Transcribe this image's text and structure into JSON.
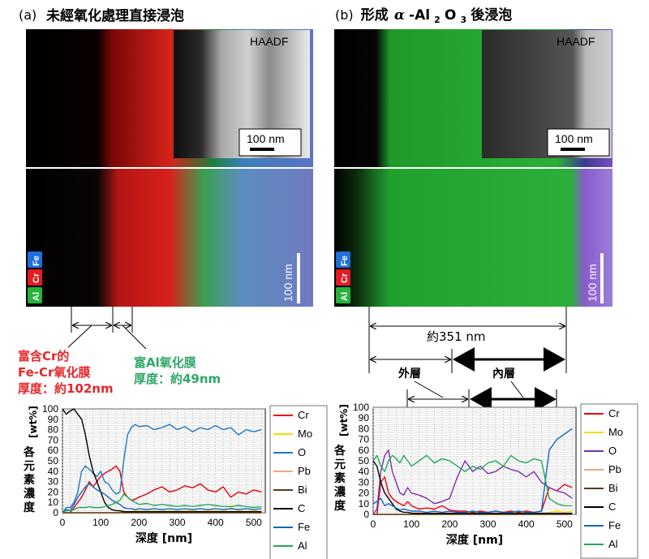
{
  "panels": [
    {
      "id": "a",
      "title_prefix": "(a)",
      "title": "未經氧化處理直接浸泡",
      "haadf_label": "HAADF",
      "scalebar_label": "100 nm",
      "map_scalebar_label": "100 nm",
      "element_badges": [
        "Fe",
        "Cr",
        "Al"
      ],
      "annotations": {
        "layer1_lines": [
          "富含Cr的",
          "Fe-Cr氧化膜",
          "厚度：約102nm"
        ],
        "layer2_lines": [
          "富Al氧化膜",
          "厚度：約49nm"
        ]
      },
      "colors": {
        "layer1": "#e8262a",
        "layer2": "#2ea86a"
      }
    },
    {
      "id": "b",
      "title_prefix": "(b)",
      "title_main": "形成",
      "title_alpha": "α",
      "title_compound": [
        "-Al",
        "2",
        "O",
        "3"
      ],
      "title_suffix": "後浸泡",
      "haadf_label": "HAADF",
      "scalebar_label": "100 nm",
      "map_scalebar_label": "100 nm",
      "element_badges": [
        "Fe",
        "Cr",
        "Al"
      ],
      "annotations": {
        "total": "約351 nm",
        "outer": "外層",
        "inner": "內層"
      }
    }
  ],
  "colors": {
    "Cr": "#e8000b",
    "Mo": "#ffd700",
    "O": "#7b2fb0",
    "O_a": "#1f77c4",
    "Pb": "#f4a582",
    "Bi": "#5c3b1e",
    "C": "#000000",
    "Fe": "#1565c0",
    "Al": "#22a85a",
    "badge_fe": "#1e6fd9",
    "badge_cr": "#e31b23",
    "badge_al": "#28b33a"
  },
  "chart_data": [
    {
      "type": "line",
      "panel": "a",
      "ylabel": "[wt%]",
      "ylabel_chars": [
        "各",
        "元",
        "素",
        "濃",
        "度"
      ],
      "xlabel": "深度 [nm]",
      "xlim": [
        0,
        530
      ],
      "ylim": [
        0,
        100
      ],
      "xticks": [
        0,
        100,
        200,
        300,
        400,
        500
      ],
      "yticks": [
        0,
        10,
        20,
        30,
        40,
        50,
        60,
        70,
        80,
        90,
        100
      ],
      "legend": [
        "Cr",
        "Mo",
        "O",
        "Pb",
        "Bi",
        "C",
        "Fe",
        "Al"
      ],
      "x": [
        0,
        10,
        20,
        30,
        40,
        50,
        60,
        70,
        80,
        90,
        100,
        110,
        120,
        130,
        140,
        150,
        160,
        170,
        180,
        190,
        200,
        220,
        240,
        260,
        280,
        300,
        320,
        340,
        360,
        380,
        400,
        420,
        440,
        460,
        480,
        500,
        520
      ],
      "series": [
        {
          "name": "Cr",
          "values": [
            0,
            0,
            0,
            5,
            10,
            15,
            22,
            30,
            25,
            30,
            35,
            38,
            40,
            42,
            45,
            40,
            20,
            15,
            12,
            13,
            15,
            18,
            22,
            25,
            20,
            22,
            26,
            24,
            28,
            22,
            20,
            25,
            15,
            20,
            18,
            22,
            20
          ]
        },
        {
          "name": "Mo",
          "values": [
            0,
            0,
            0,
            0,
            0,
            0,
            0,
            0,
            0,
            0,
            0,
            0,
            0,
            0,
            0,
            1,
            1,
            1,
            1,
            2,
            2,
            1,
            2,
            1,
            2,
            1,
            2,
            2,
            1,
            2,
            2,
            1,
            5,
            2,
            1,
            2,
            1
          ]
        },
        {
          "name": "O",
          "values": [
            0,
            5,
            5,
            10,
            20,
            40,
            45,
            42,
            38,
            35,
            40,
            30,
            28,
            22,
            18,
            20,
            50,
            75,
            82,
            85,
            83,
            84,
            80,
            82,
            85,
            80,
            83,
            78,
            82,
            80,
            84,
            80,
            82,
            75,
            80,
            78,
            80
          ]
        },
        {
          "name": "Pb",
          "values": [
            0,
            0,
            0,
            0,
            0,
            0,
            0,
            0,
            0,
            0,
            0,
            0,
            0,
            0,
            0,
            0,
            0,
            0,
            0,
            0,
            0,
            0,
            0,
            0,
            0,
            0,
            0,
            0,
            0,
            0,
            0,
            0,
            0,
            0,
            0,
            0,
            0
          ]
        },
        {
          "name": "Bi",
          "values": [
            0,
            0,
            0,
            0,
            0,
            0,
            0,
            0,
            0,
            0,
            0,
            0,
            0,
            0,
            0,
            0,
            0,
            0,
            0,
            0,
            0,
            0,
            0,
            0,
            0,
            0,
            0,
            0,
            0,
            0,
            0,
            0,
            0,
            0,
            0,
            0,
            0
          ]
        },
        {
          "name": "C",
          "values": [
            100,
            95,
            98,
            100,
            95,
            90,
            75,
            55,
            40,
            30,
            20,
            10,
            5,
            3,
            2,
            2,
            1,
            1,
            1,
            1,
            1,
            1,
            1,
            1,
            1,
            1,
            1,
            1,
            1,
            1,
            1,
            1,
            1,
            1,
            1,
            1,
            1
          ]
        },
        {
          "name": "Fe",
          "values": [
            0,
            3,
            2,
            8,
            15,
            20,
            25,
            28,
            25,
            22,
            20,
            18,
            15,
            12,
            10,
            8,
            5,
            4,
            4,
            3,
            4,
            3,
            4,
            3,
            4,
            3,
            4,
            3,
            4,
            3,
            4,
            3,
            4,
            3,
            4,
            3,
            4
          ]
        },
        {
          "name": "Al",
          "values": [
            0,
            2,
            2,
            3,
            5,
            5,
            5,
            6,
            5,
            5,
            5,
            6,
            7,
            8,
            10,
            12,
            18,
            15,
            12,
            10,
            8,
            9,
            7,
            8,
            7,
            6,
            7,
            6,
            7,
            8,
            7,
            6,
            6,
            7,
            6,
            5,
            6
          ]
        }
      ]
    },
    {
      "type": "line",
      "panel": "b",
      "ylabel": "[wt%]",
      "ylabel_chars": [
        "各",
        "元",
        "素",
        "濃",
        "度"
      ],
      "xlabel": "深度 [nm]",
      "xlim": [
        0,
        530
      ],
      "ylim": [
        0,
        100
      ],
      "xticks": [
        0,
        100,
        200,
        300,
        400,
        500
      ],
      "yticks": [
        0,
        10,
        20,
        30,
        40,
        50,
        60,
        70,
        80,
        90,
        100
      ],
      "legend": [
        "Cr",
        "Mo",
        "O",
        "Pb",
        "Bi",
        "C",
        "Fe",
        "Al"
      ],
      "x": [
        0,
        10,
        20,
        30,
        40,
        50,
        60,
        70,
        80,
        90,
        100,
        120,
        140,
        160,
        180,
        200,
        220,
        240,
        260,
        280,
        300,
        320,
        340,
        360,
        380,
        400,
        420,
        440,
        460,
        480,
        500,
        520
      ],
      "series": [
        {
          "name": "Cr",
          "values": [
            0,
            0,
            30,
            35,
            20,
            15,
            12,
            10,
            8,
            12,
            8,
            5,
            6,
            5,
            8,
            4,
            3,
            3,
            2,
            3,
            2,
            3,
            2,
            3,
            2,
            3,
            2,
            3,
            25,
            22,
            28,
            25
          ]
        },
        {
          "name": "Mo",
          "values": [
            0,
            0,
            0,
            0,
            0,
            0,
            0,
            0,
            0,
            0,
            0,
            0,
            0,
            0,
            0,
            0,
            0,
            0,
            0,
            0,
            0,
            0,
            0,
            0,
            0,
            0,
            0,
            0,
            2,
            3,
            2,
            3
          ]
        },
        {
          "name": "O",
          "values": [
            0,
            5,
            40,
            55,
            60,
            40,
            30,
            20,
            18,
            25,
            20,
            18,
            15,
            10,
            12,
            15,
            35,
            50,
            40,
            45,
            38,
            40,
            45,
            42,
            40,
            35,
            40,
            30,
            25,
            22,
            20,
            15
          ]
        },
        {
          "name": "Pb",
          "values": [
            0,
            0,
            0,
            0,
            0,
            0,
            0,
            0,
            0,
            0,
            0,
            0,
            0,
            0,
            0,
            0,
            0,
            0,
            0,
            0,
            0,
            0,
            0,
            0,
            0,
            0,
            0,
            0,
            0,
            0,
            0,
            0
          ]
        },
        {
          "name": "Bi",
          "values": [
            0,
            0,
            0,
            0,
            0,
            0,
            0,
            0,
            0,
            0,
            0,
            0,
            0,
            0,
            0,
            0,
            0,
            0,
            0,
            0,
            0,
            0,
            0,
            0,
            0,
            0,
            0,
            0,
            0,
            0,
            0,
            0
          ]
        },
        {
          "name": "C",
          "values": [
            50,
            45,
            30,
            20,
            15,
            10,
            5,
            3,
            2,
            2,
            1,
            1,
            1,
            1,
            1,
            1,
            1,
            1,
            1,
            1,
            1,
            1,
            1,
            1,
            1,
            1,
            1,
            1,
            1,
            1,
            1,
            1
          ]
        },
        {
          "name": "Fe",
          "values": [
            10,
            12,
            15,
            8,
            10,
            8,
            6,
            4,
            5,
            4,
            3,
            3,
            2,
            3,
            2,
            3,
            2,
            2,
            3,
            2,
            2,
            3,
            2,
            2,
            3,
            2,
            2,
            3,
            60,
            70,
            75,
            80
          ]
        },
        {
          "name": "Al",
          "values": [
            50,
            55,
            45,
            40,
            50,
            55,
            52,
            48,
            55,
            50,
            45,
            50,
            55,
            48,
            52,
            50,
            45,
            40,
            45,
            42,
            48,
            50,
            45,
            55,
            50,
            48,
            52,
            50,
            15,
            10,
            8,
            8
          ]
        }
      ]
    }
  ]
}
